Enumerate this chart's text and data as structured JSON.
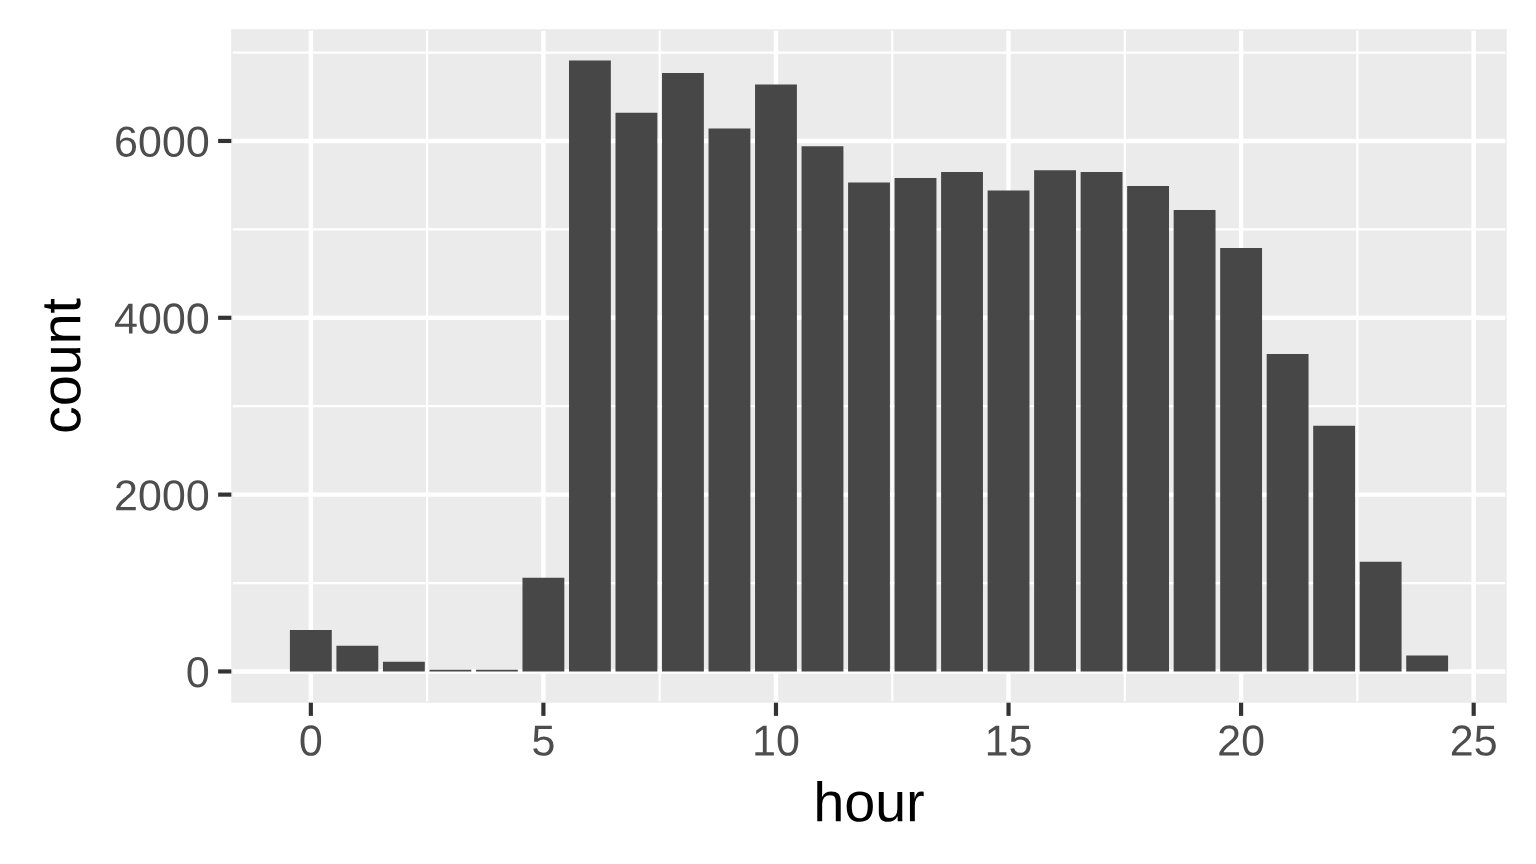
{
  "chart_data": {
    "type": "bar",
    "xlabel": "hour",
    "ylabel": "count",
    "x": [
      0,
      1,
      2,
      3,
      4,
      5,
      6,
      7,
      8,
      9,
      10,
      11,
      12,
      13,
      14,
      15,
      16,
      17,
      18,
      19,
      20,
      21,
      22,
      23,
      24
    ],
    "values": [
      470,
      290,
      110,
      20,
      20,
      1060,
      6910,
      6320,
      6770,
      6140,
      6640,
      5940,
      5530,
      5580,
      5650,
      5440,
      5670,
      5650,
      5490,
      5220,
      4790,
      3590,
      2780,
      1240,
      180
    ],
    "color": "#474747",
    "xlim": [
      -1.695,
      25.695
    ],
    "ylim": [
      -345.5,
      7255
    ],
    "xticks": [
      0,
      5,
      10,
      15,
      20,
      25
    ],
    "yticks": [
      0,
      2000,
      4000,
      6000
    ],
    "grid": true
  }
}
